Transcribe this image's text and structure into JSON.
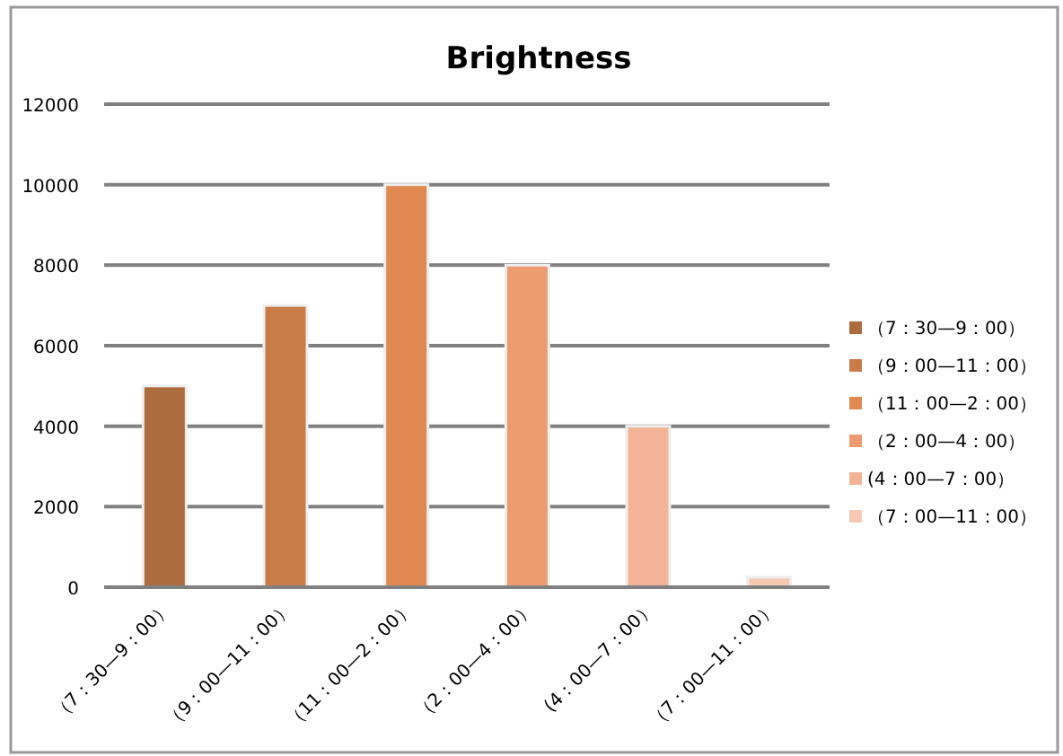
{
  "chart_data": {
    "type": "bar",
    "title": "Brightness",
    "categories": [
      "（7：30—9：00）",
      "（9：00—11：00）",
      "（11：00—2：00）",
      "（2：00—4：00）",
      "(4：00—7：00）",
      "（7：00—11：00）"
    ],
    "series": [
      {
        "name": "（7：30—9：00）",
        "color": "#ad6c3e",
        "values": [
          5000,
          null,
          null,
          null,
          null,
          null
        ]
      },
      {
        "name": "（9：00—11：00）",
        "color": "#c97c48",
        "values": [
          null,
          7000,
          null,
          null,
          null,
          null
        ]
      },
      {
        "name": "（11：00—2：00）",
        "color": "#e08a52",
        "values": [
          null,
          null,
          10000,
          null,
          null,
          null
        ]
      },
      {
        "name": "（2：00—4：00）",
        "color": "#ed9b70",
        "values": [
          null,
          null,
          null,
          8000,
          null,
          null
        ]
      },
      {
        "name": "(4：00—7：00）",
        "color": "#f2b396",
        "values": [
          null,
          null,
          null,
          null,
          4000,
          null
        ]
      },
      {
        "name": "（7：00—11：00）",
        "color": "#f7c9b5",
        "values": [
          null,
          null,
          null,
          null,
          null,
          250
        ]
      }
    ],
    "ylim": [
      0,
      12000
    ],
    "yticks": [
      0,
      2000,
      4000,
      6000,
      8000,
      10000,
      12000
    ],
    "grid": "y",
    "legend": "right"
  }
}
